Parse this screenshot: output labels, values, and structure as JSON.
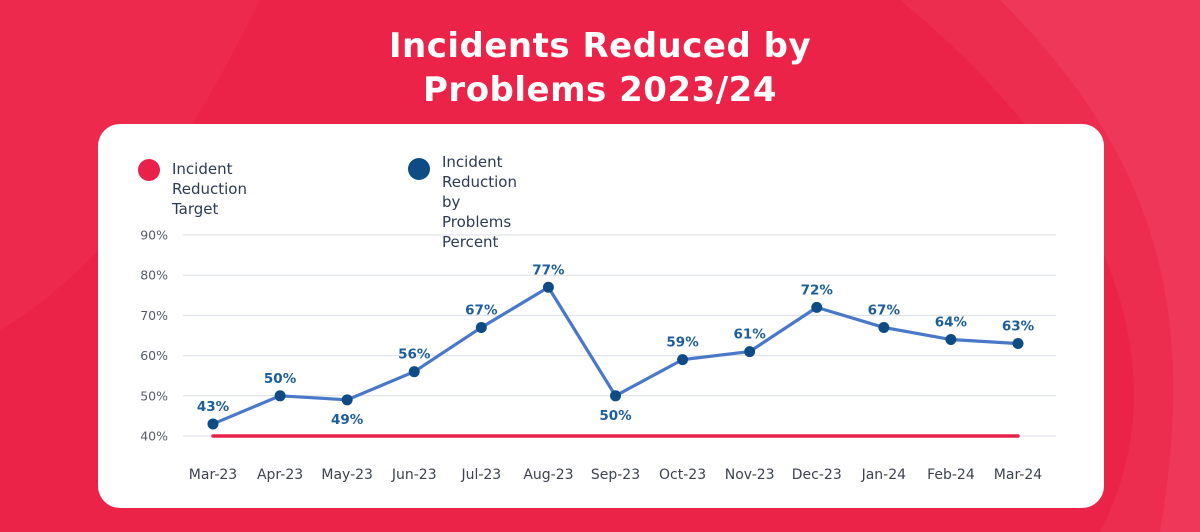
{
  "title_lines": [
    "Incidents Reduced by",
    "Problems 2023/24"
  ],
  "colors": {
    "background": "#ec2348",
    "target": "#e8204a",
    "series_line": "#4a78c9",
    "series_marker": "#0f4c86",
    "data_label": "#1d5d9a"
  },
  "chart_data": {
    "type": "line",
    "title": "Incidents Reduced by Problems 2023/24",
    "categories": [
      "Mar-23",
      "Apr-23",
      "May-23",
      "Jun-23",
      "Jul-23",
      "Aug-23",
      "Sep-23",
      "Oct-23",
      "Nov-23",
      "Dec-23",
      "Jan-24",
      "Feb-24",
      "Mar-24"
    ],
    "y_ticks": [
      "40%",
      "50%",
      "60%",
      "70%",
      "80%",
      "90%"
    ],
    "ylim": [
      40,
      90
    ],
    "grid": true,
    "legend_position": "top-left",
    "series": [
      {
        "name": "Incident Reduction Target",
        "color": "#e8204a",
        "values": [
          40,
          40,
          40,
          40,
          40,
          40,
          40,
          40,
          40,
          40,
          40,
          40,
          40
        ]
      },
      {
        "name": "Incident Reduction by\nProblems Percent",
        "color": "#0f4c86",
        "values": [
          43,
          50,
          49,
          56,
          67,
          77,
          50,
          59,
          61,
          72,
          67,
          64,
          63
        ],
        "labels": [
          "43%",
          "50%",
          "49%",
          "56%",
          "67%",
          "77%",
          "50%",
          "59%",
          "61%",
          "72%",
          "67%",
          "64%",
          "63%"
        ]
      }
    ]
  }
}
